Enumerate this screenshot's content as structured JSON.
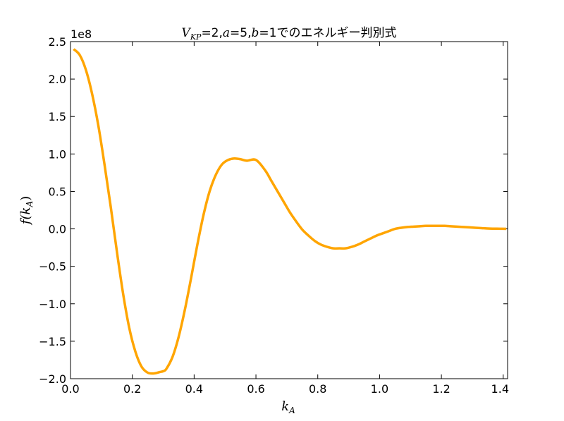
{
  "chart_data": {
    "type": "line",
    "title": "V_KP=2,a=5,b=1でのエネルギー判別式",
    "title_parts": {
      "v": "V",
      "v_sub": "KP",
      "rest1": "=2,",
      "a": "a",
      "rest2": "=5,",
      "b": "b",
      "rest3": "=1でのエネルギー判別式"
    },
    "xlabel": "k_A",
    "xlabel_parts": {
      "main": "k",
      "sub": "A"
    },
    "ylabel": "f(k_A)",
    "ylabel_parts": {
      "prefix": "f(",
      "main": "k",
      "sub": "A",
      "suffix": ")"
    },
    "y_offset_label": "1e8",
    "xlim": [
      0,
      1.4142
    ],
    "ylim": [
      -2.0,
      2.5
    ],
    "y_scale_factor": 100000000,
    "x_ticks": [
      "0.0",
      "0.2",
      "0.4",
      "0.6",
      "0.8",
      "1.0",
      "1.2",
      "1.4"
    ],
    "y_ticks": [
      "2.5",
      "2.0",
      "1.5",
      "1.0",
      "0.5",
      "0.0",
      "−0.5",
      "−1.0",
      "−1.5",
      "−2.0"
    ],
    "grid": false,
    "series": [
      {
        "color": "#ffa500",
        "x": [
          0.01,
          0.03,
          0.05,
          0.07,
          0.09,
          0.11,
          0.13,
          0.15,
          0.17,
          0.19,
          0.21,
          0.23,
          0.25,
          0.27,
          0.29,
          0.3,
          0.31,
          0.33,
          0.35,
          0.37,
          0.39,
          0.41,
          0.43,
          0.45,
          0.47,
          0.49,
          0.51,
          0.53,
          0.55,
          0.57,
          0.6,
          0.63,
          0.65,
          0.67,
          0.69,
          0.71,
          0.73,
          0.75,
          0.77,
          0.79,
          0.81,
          0.83,
          0.85,
          0.87,
          0.89,
          0.91,
          0.93,
          0.95,
          0.97,
          0.99,
          1.01,
          1.03,
          1.05,
          1.07,
          1.09,
          1.11,
          1.13,
          1.15,
          1.17,
          1.19,
          1.21,
          1.23,
          1.25,
          1.27,
          1.29,
          1.31,
          1.33,
          1.35,
          1.37,
          1.39,
          1.41
        ],
        "y": [
          2.4,
          2.32,
          2.12,
          1.8,
          1.38,
          0.86,
          0.3,
          -0.3,
          -0.86,
          -1.32,
          -1.64,
          -1.84,
          -1.92,
          -1.93,
          -1.91,
          -1.9,
          -1.87,
          -1.71,
          -1.44,
          -1.08,
          -0.66,
          -0.22,
          0.18,
          0.5,
          0.72,
          0.86,
          0.92,
          0.94,
          0.93,
          0.91,
          0.92,
          0.78,
          0.64,
          0.5,
          0.36,
          0.22,
          0.1,
          -0.01,
          -0.09,
          -0.16,
          -0.21,
          -0.24,
          -0.26,
          -0.26,
          -0.26,
          -0.24,
          -0.21,
          -0.17,
          -0.13,
          -0.09,
          -0.06,
          -0.03,
          0.0,
          0.015,
          0.025,
          0.03,
          0.035,
          0.04,
          0.04,
          0.04,
          0.04,
          0.035,
          0.03,
          0.025,
          0.02,
          0.015,
          0.01,
          0.005,
          0.003,
          0.002,
          0.001
        ]
      }
    ]
  }
}
